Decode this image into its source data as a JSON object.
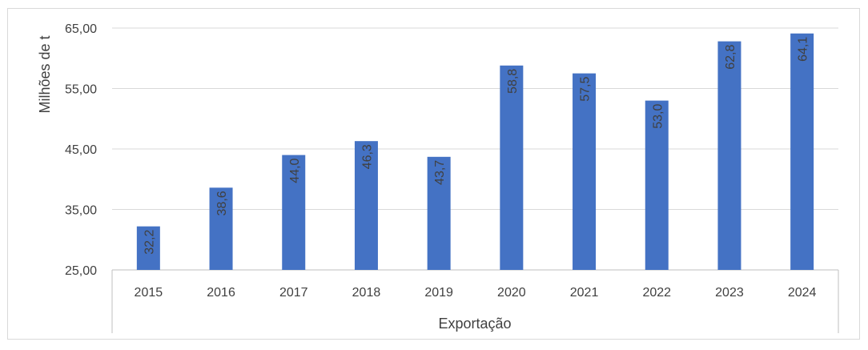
{
  "chart_data": {
    "type": "bar",
    "categories": [
      "2015",
      "2016",
      "2017",
      "2018",
      "2019",
      "2020",
      "2021",
      "2022",
      "2023",
      "2024"
    ],
    "values": [
      32.2,
      38.6,
      44.0,
      46.3,
      43.7,
      58.8,
      57.5,
      53.0,
      62.8,
      64.1
    ],
    "data_labels": [
      "32,2",
      "38,6",
      "44,0",
      "46,3",
      "43,7",
      "58,8",
      "57,5",
      "53,0",
      "62,8",
      "64,1"
    ],
    "ylabel": "Milhões de t",
    "xlabel": "Exportação",
    "ylim": [
      25,
      65
    ],
    "yticks": [
      25,
      35,
      45,
      55,
      65
    ],
    "ytick_labels": [
      "25,00",
      "35,00",
      "45,00",
      "55,00",
      "65,00"
    ],
    "grid": true,
    "bar_color": "#4472c4"
  }
}
